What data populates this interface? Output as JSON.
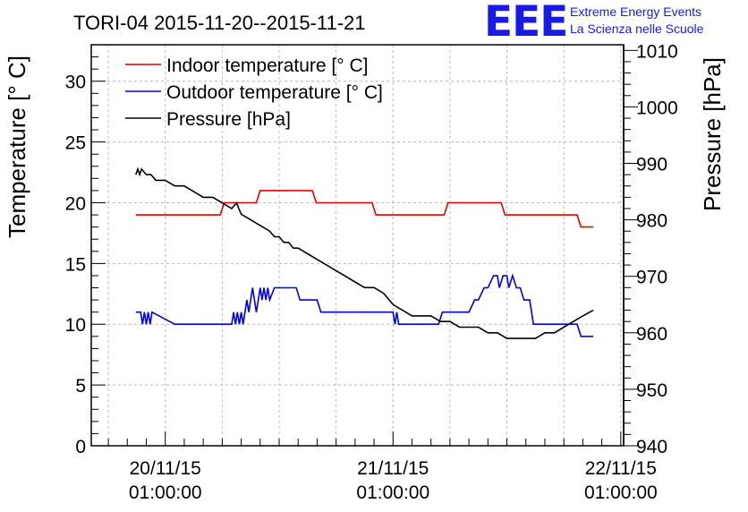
{
  "chart_data": {
    "type": "line",
    "title": "TORI-04 2015-11-20--2015-11-21",
    "ylabel_left": "Temperature [° C]",
    "ylabel_right": "Pressure [hPa]",
    "y_left_ticks": [
      "0",
      "5",
      "10",
      "15",
      "20",
      "25",
      "30"
    ],
    "y_right_ticks": [
      "940",
      "950",
      "960",
      "970",
      "980",
      "990",
      "1000",
      "1010"
    ],
    "x_ticks": [
      {
        "line1": "20/11/15",
        "line2": "01:00:00",
        "hour": 0
      },
      {
        "line1": "21/11/15",
        "line2": "01:00:00",
        "hour": 24
      },
      {
        "line1": "22/11/15",
        "line2": "01:00:00",
        "hour": 48
      }
    ],
    "ylim_left": [
      0,
      33
    ],
    "ylim_right": [
      940,
      1011
    ],
    "xlim_hours": [
      -7.8,
      48.3
    ],
    "grid": true,
    "legend_position": "top-left",
    "logo": {
      "text": "EEE",
      "line1": "Extreme Energy Events",
      "line2": "La Scienza nelle Scuole"
    },
    "series": [
      {
        "name": "Indoor temperature [° C]",
        "axis": "left",
        "color": "#e00000",
        "x_hours": [
          -3.1,
          5.8,
          6.2,
          9.6,
          10.0,
          15.5,
          15.9,
          21.8,
          22.2,
          29.4,
          29.8,
          35.4,
          35.8,
          43.4,
          43.8,
          45.1
        ],
        "y": [
          19,
          19,
          20,
          20,
          21,
          21,
          20,
          20,
          19,
          19,
          20,
          20,
          19,
          19,
          18,
          18
        ]
      },
      {
        "name": "Outdoor temperature [° C]",
        "axis": "left",
        "color": "#0000e0",
        "x_hours": [
          -3.1,
          -2.6,
          -2.4,
          -2.2,
          -2.0,
          -1.8,
          -1.6,
          -1.4,
          1.0,
          7.0,
          7.2,
          7.4,
          7.6,
          7.8,
          8.0,
          8.2,
          8.4,
          8.6,
          8.8,
          9.0,
          9.2,
          9.4,
          9.6,
          9.8,
          10.0,
          10.2,
          10.4,
          10.6,
          10.8,
          11.0,
          11.5,
          11.8,
          13.8,
          14.2,
          15.0,
          16.0,
          16.4,
          18.0,
          24.0,
          24.2,
          24.4,
          24.6,
          24.8,
          27.0,
          28.8,
          29.2,
          31.6,
          32.0,
          32.6,
          33.0,
          33.6,
          34.0,
          34.6,
          35.0,
          35.2,
          35.6,
          36.0,
          36.2,
          36.6,
          37.0,
          37.4,
          37.8,
          38.4,
          38.8,
          42.0,
          43.4,
          43.8,
          45.1
        ],
        "y": [
          11,
          11,
          10,
          11,
          10,
          11,
          10,
          11,
          10,
          10,
          11,
          10,
          11,
          10,
          11,
          10,
          11,
          12,
          11,
          12,
          13,
          12,
          11,
          12,
          13,
          12,
          13,
          12,
          13,
          12,
          13,
          13,
          13,
          12,
          12,
          12,
          11,
          11,
          11,
          10,
          11,
          10,
          10,
          10,
          10,
          11,
          11,
          11,
          12,
          12,
          13,
          13,
          14,
          14,
          13,
          14,
          14,
          13,
          14,
          13,
          13,
          12,
          12,
          10,
          10,
          10,
          9,
          9
        ]
      },
      {
        "name": "Pressure [hPa]",
        "axis": "right",
        "color": "#000000",
        "x_hours": [
          -3.1,
          -2.9,
          -2.7,
          -2.5,
          -2.0,
          -1.5,
          -1.0,
          0.0,
          1.0,
          2.0,
          3.0,
          4.0,
          5.0,
          6.0,
          7.0,
          7.5,
          8.0,
          9.0,
          10.0,
          11.0,
          11.5,
          12.0,
          12.5,
          13.0,
          13.5,
          14.0,
          15.0,
          16.0,
          17.0,
          18.0,
          19.0,
          20.0,
          21.0,
          22.0,
          23.0,
          24.0,
          25.0,
          26.0,
          27.0,
          28.0,
          29.0,
          30.0,
          31.0,
          32.0,
          33.0,
          34.0,
          35.0,
          36.0,
          37.0,
          38.0,
          39.0,
          40.0,
          41.0,
          42.0,
          43.0,
          44.0,
          45.1
        ],
        "y": [
          988,
          989,
          988,
          989,
          988,
          988,
          987,
          987,
          986,
          986,
          985,
          984,
          984,
          983,
          982,
          983,
          981,
          980,
          979,
          978,
          977,
          977,
          976,
          976,
          975,
          975,
          974,
          973,
          972,
          971,
          970,
          969,
          968,
          968,
          967,
          965,
          964,
          963,
          963,
          963,
          962,
          962,
          961,
          961,
          961,
          960,
          960,
          959,
          959,
          959,
          959,
          960,
          960,
          961,
          962,
          963,
          964
        ]
      }
    ]
  }
}
